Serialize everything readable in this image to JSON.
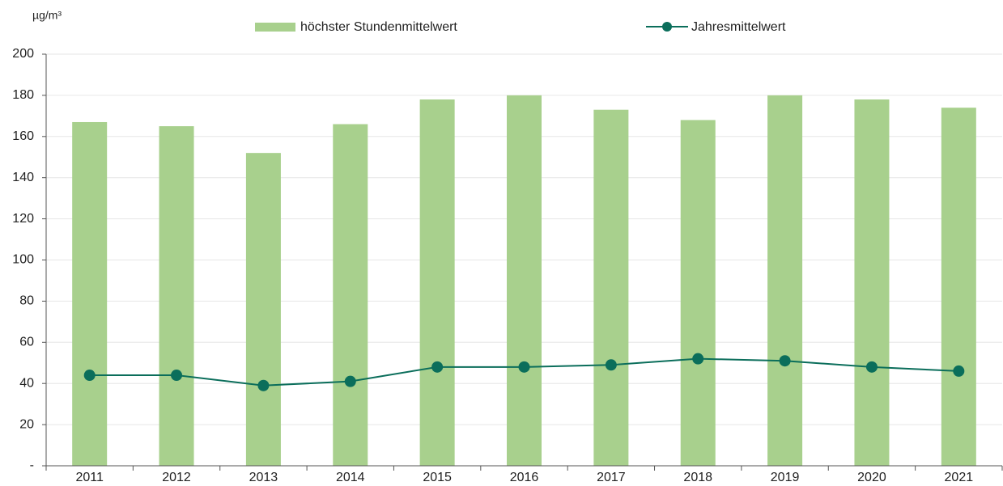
{
  "chart_data": {
    "type": "bar_line",
    "y_axis_label": "µg/m³",
    "categories": [
      "2011",
      "2012",
      "2013",
      "2014",
      "2015",
      "2016",
      "2017",
      "2018",
      "2019",
      "2020",
      "2021"
    ],
    "series": [
      {
        "name": "höchster Stundenmittelwert",
        "type": "bar",
        "color": "#a8d08d",
        "values": [
          167,
          165,
          152,
          166,
          178,
          180,
          173,
          168,
          180,
          178,
          174
        ]
      },
      {
        "name": "Jahresmittelwert",
        "type": "line",
        "color": "#0b6e5b",
        "values": [
          44,
          44,
          39,
          41,
          48,
          48,
          49,
          52,
          51,
          48,
          46
        ]
      }
    ],
    "ylim": [
      0,
      200
    ],
    "yticks": [
      {
        "value": 0,
        "label": "-"
      },
      20,
      40,
      60,
      80,
      100,
      120,
      140,
      160,
      180,
      200
    ],
    "grid": true
  }
}
